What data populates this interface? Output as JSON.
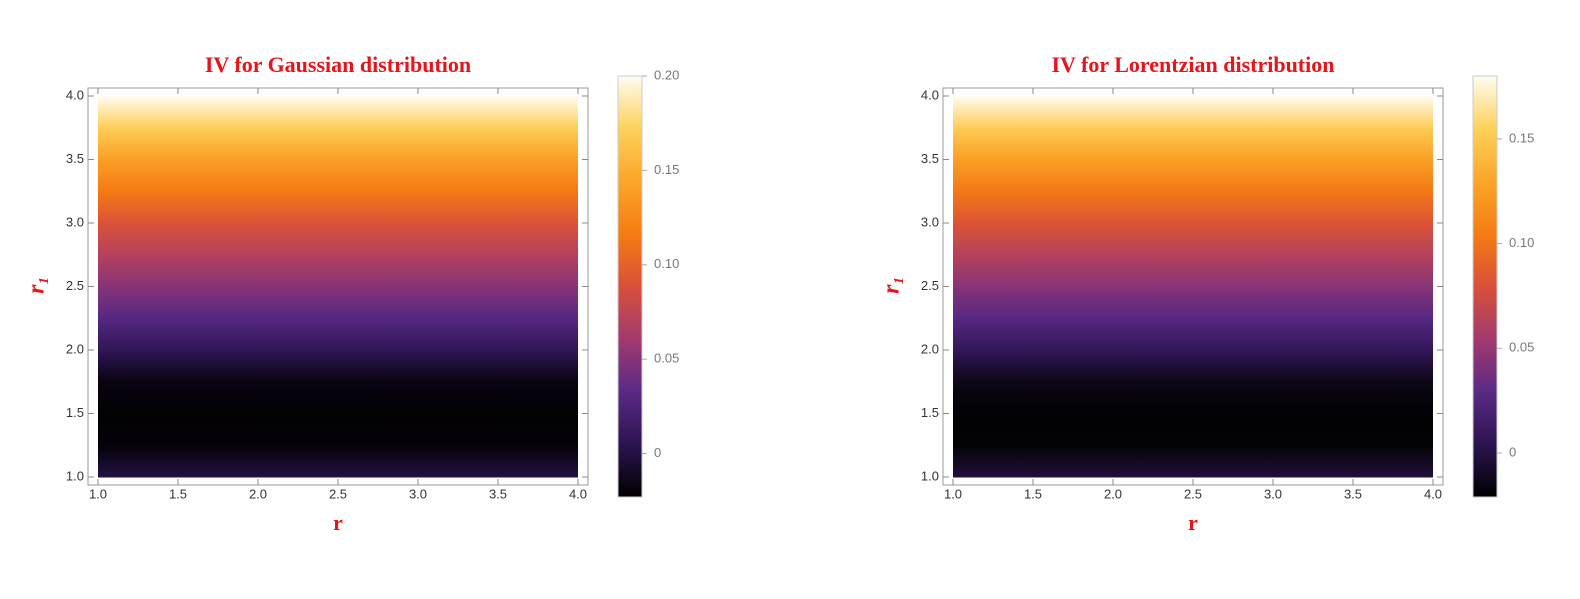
{
  "chart_data": [
    {
      "type": "density",
      "title": "IV for Gaussian distribution",
      "xlabel": "r",
      "ylabel": "r₁",
      "label_color": "#e8141a",
      "y": [
        1.0,
        1.25,
        1.5,
        1.75,
        2.0,
        2.25,
        2.5,
        2.75,
        3.0,
        3.25,
        3.5,
        3.75,
        4.0
      ],
      "values": [
        0.0,
        -0.02,
        -0.022,
        -0.017,
        0.008,
        0.03,
        0.05,
        0.07,
        0.09,
        0.115,
        0.14,
        0.17,
        0.2
      ],
      "xlim": [
        1,
        4
      ],
      "ylim": [
        1,
        4
      ],
      "xticks": [
        {
          "value": 1,
          "label": "1.0"
        },
        1.5,
        {
          "value": 2,
          "label": "2.0"
        },
        2.5,
        {
          "value": 3,
          "label": "3.0"
        },
        3.5,
        {
          "value": 4,
          "label": "4.0"
        }
      ],
      "yticks": [
        {
          "value": 1,
          "label": "1.0"
        },
        1.5,
        {
          "value": 2,
          "label": "2.0"
        },
        2.5,
        {
          "value": 3,
          "label": "3.0"
        },
        3.5,
        {
          "value": 4,
          "label": "4.0"
        }
      ],
      "clim": [
        -0.023,
        0.2
      ],
      "cticks": [
        0,
        0.05,
        {
          "value": 0.1,
          "label": "0.10"
        },
        0.15,
        {
          "value": 0.2,
          "label": "0.20"
        }
      ],
      "colormap": [
        "#000000",
        "#2b1450",
        "#5a2a86",
        "#a23a6e",
        "#d9503a",
        "#f57c12",
        "#fba52a",
        "#fdd15a",
        "#fffdf2"
      ]
    },
    {
      "type": "density",
      "title": "IV for Lorentzian distribution",
      "xlabel": "r",
      "ylabel": "r₁",
      "label_color": "#e8141a",
      "y": [
        1.0,
        1.25,
        1.5,
        1.75,
        2.0,
        2.25,
        2.5,
        2.75,
        3.0,
        3.25,
        3.5,
        3.75,
        4.0
      ],
      "values": [
        -0.002,
        -0.019,
        -0.02,
        -0.014,
        0.008,
        0.027,
        0.045,
        0.063,
        0.082,
        0.103,
        0.126,
        0.152,
        0.18
      ],
      "xlim": [
        1,
        4
      ],
      "ylim": [
        1,
        4
      ],
      "xticks": [
        {
          "value": 1,
          "label": "1.0"
        },
        1.5,
        {
          "value": 2,
          "label": "2.0"
        },
        2.5,
        {
          "value": 3,
          "label": "3.0"
        },
        3.5,
        {
          "value": 4,
          "label": "4.0"
        }
      ],
      "yticks": [
        {
          "value": 1,
          "label": "1.0"
        },
        1.5,
        {
          "value": 2,
          "label": "2.0"
        },
        2.5,
        {
          "value": 3,
          "label": "3.0"
        },
        3.5,
        {
          "value": 4,
          "label": "4.0"
        }
      ],
      "clim": [
        -0.021,
        0.18
      ],
      "cticks": [
        0,
        0.05,
        {
          "value": 0.1,
          "label": "0.10"
        },
        0.15
      ],
      "colormap": [
        "#000000",
        "#2b1450",
        "#5a2a86",
        "#a23a6e",
        "#d9503a",
        "#f57c12",
        "#fba52a",
        "#fdd15a",
        "#fffdf2"
      ]
    }
  ]
}
